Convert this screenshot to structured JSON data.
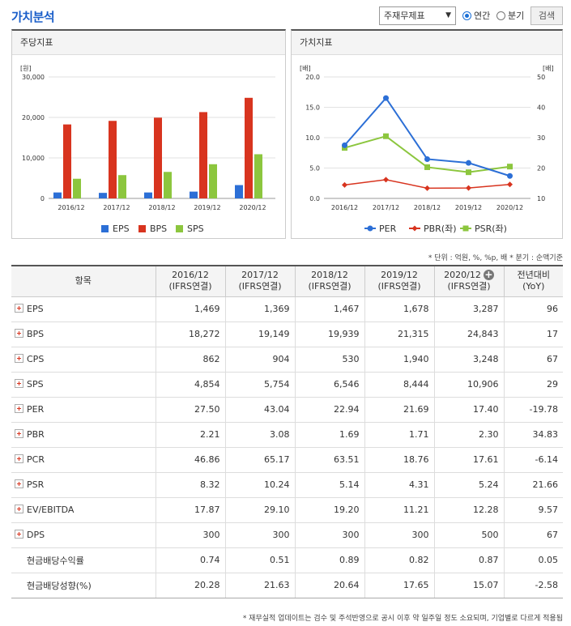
{
  "header": {
    "title": "가치분석",
    "select_value": "주재무제표",
    "radio_annual": "연간",
    "radio_quarter": "분기",
    "search_label": "검색"
  },
  "panels": {
    "left_title": "주당지표",
    "right_title": "가치지표"
  },
  "colors": {
    "eps": "#2c6fd6",
    "bps": "#d8341f",
    "sps": "#8cc63e",
    "per": "#2c6fd6",
    "pbr": "#d8341f",
    "psr": "#8cc63e",
    "accent": "#1a5ec9",
    "negative": "#e02020"
  },
  "chart_data": [
    {
      "type": "bar",
      "title": "",
      "ylabel": "[원]",
      "ylim": [
        0,
        30000
      ],
      "yticks": [
        "0",
        "10,000",
        "20,000",
        "30,000"
      ],
      "categories": [
        "2016/12",
        "2017/12",
        "2018/12",
        "2019/12",
        "2020/12"
      ],
      "series": [
        {
          "name": "EPS",
          "values": [
            1469,
            1369,
            1467,
            1678,
            3287
          ]
        },
        {
          "name": "BPS",
          "values": [
            18272,
            19149,
            19939,
            21315,
            24843
          ]
        },
        {
          "name": "SPS",
          "values": [
            4854,
            5754,
            6546,
            8444,
            10906
          ]
        }
      ],
      "grid": true,
      "legend": "bottom"
    },
    {
      "type": "line",
      "title": "",
      "ylabel_left": "[배]",
      "ylabel_right": "[배]",
      "ylim_left": [
        0,
        20
      ],
      "ylim_right": [
        10,
        50
      ],
      "yticks_left": [
        "0.0",
        "5.0",
        "10.0",
        "15.0",
        "20.0"
      ],
      "yticks_right": [
        "10",
        "20",
        "30",
        "40",
        "50"
      ],
      "categories": [
        "2016/12",
        "2017/12",
        "2018/12",
        "2019/12",
        "2020/12"
      ],
      "series": [
        {
          "name": "PER",
          "axis": "right",
          "marker": "circle",
          "values": [
            27.5,
            43.04,
            22.94,
            21.69,
            17.4
          ]
        },
        {
          "name": "PBR(좌)",
          "axis": "left",
          "marker": "diamond",
          "values": [
            2.21,
            3.08,
            1.69,
            1.71,
            2.3
          ]
        },
        {
          "name": "PSR(좌)",
          "axis": "left",
          "marker": "square",
          "values": [
            8.32,
            10.24,
            5.14,
            4.31,
            5.24
          ]
        }
      ],
      "grid": true,
      "legend": "bottom"
    }
  ],
  "unit_note": "* 단위 : 억원, %, %p, 배    * 분기 : 순액기준",
  "table": {
    "headers": [
      "항목",
      "2016/12\n(IFRS연결)",
      "2017/12\n(IFRS연결)",
      "2018/12\n(IFRS연결)",
      "2019/12\n(IFRS연결)",
      "2020/12\n(IFRS연결)",
      "전년대비\n(YoY)"
    ],
    "rows": [
      {
        "name": "EPS",
        "expand": true,
        "values": [
          "1,469",
          "1,369",
          "1,467",
          "1,678",
          "3,287",
          "96"
        ]
      },
      {
        "name": "BPS",
        "expand": true,
        "values": [
          "18,272",
          "19,149",
          "19,939",
          "21,315",
          "24,843",
          "17"
        ]
      },
      {
        "name": "CPS",
        "expand": true,
        "values": [
          "862",
          "904",
          "530",
          "1,940",
          "3,248",
          "67"
        ]
      },
      {
        "name": "SPS",
        "expand": true,
        "values": [
          "4,854",
          "5,754",
          "6,546",
          "8,444",
          "10,906",
          "29"
        ]
      },
      {
        "name": "PER",
        "expand": true,
        "values": [
          "27.50",
          "43.04",
          "22.94",
          "21.69",
          "17.40",
          "-19.78"
        ]
      },
      {
        "name": "PBR",
        "expand": true,
        "values": [
          "2.21",
          "3.08",
          "1.69",
          "1.71",
          "2.30",
          "34.83"
        ]
      },
      {
        "name": "PCR",
        "expand": true,
        "values": [
          "46.86",
          "65.17",
          "63.51",
          "18.76",
          "17.61",
          "-6.14"
        ]
      },
      {
        "name": "PSR",
        "expand": true,
        "values": [
          "8.32",
          "10.24",
          "5.14",
          "4.31",
          "5.24",
          "21.66"
        ]
      },
      {
        "name": "EV/EBITDA",
        "expand": true,
        "values": [
          "17.87",
          "29.10",
          "19.20",
          "11.21",
          "12.28",
          "9.57"
        ]
      },
      {
        "name": "DPS",
        "expand": true,
        "values": [
          "300",
          "300",
          "300",
          "300",
          "500",
          "67"
        ]
      },
      {
        "name": "현금배당수익률",
        "expand": false,
        "values": [
          "0.74",
          "0.51",
          "0.89",
          "0.82",
          "0.87",
          "0.05"
        ]
      },
      {
        "name": "현금배당성향(%)",
        "expand": false,
        "values": [
          "20.28",
          "21.63",
          "20.64",
          "17.65",
          "15.07",
          "-2.58"
        ]
      }
    ]
  },
  "footnote": "* 재무실적 업데이트는 검수 및 주석반영으로 공시 이후 약 일주일 정도 소요되며, 기업별로 다르게 적용됨"
}
